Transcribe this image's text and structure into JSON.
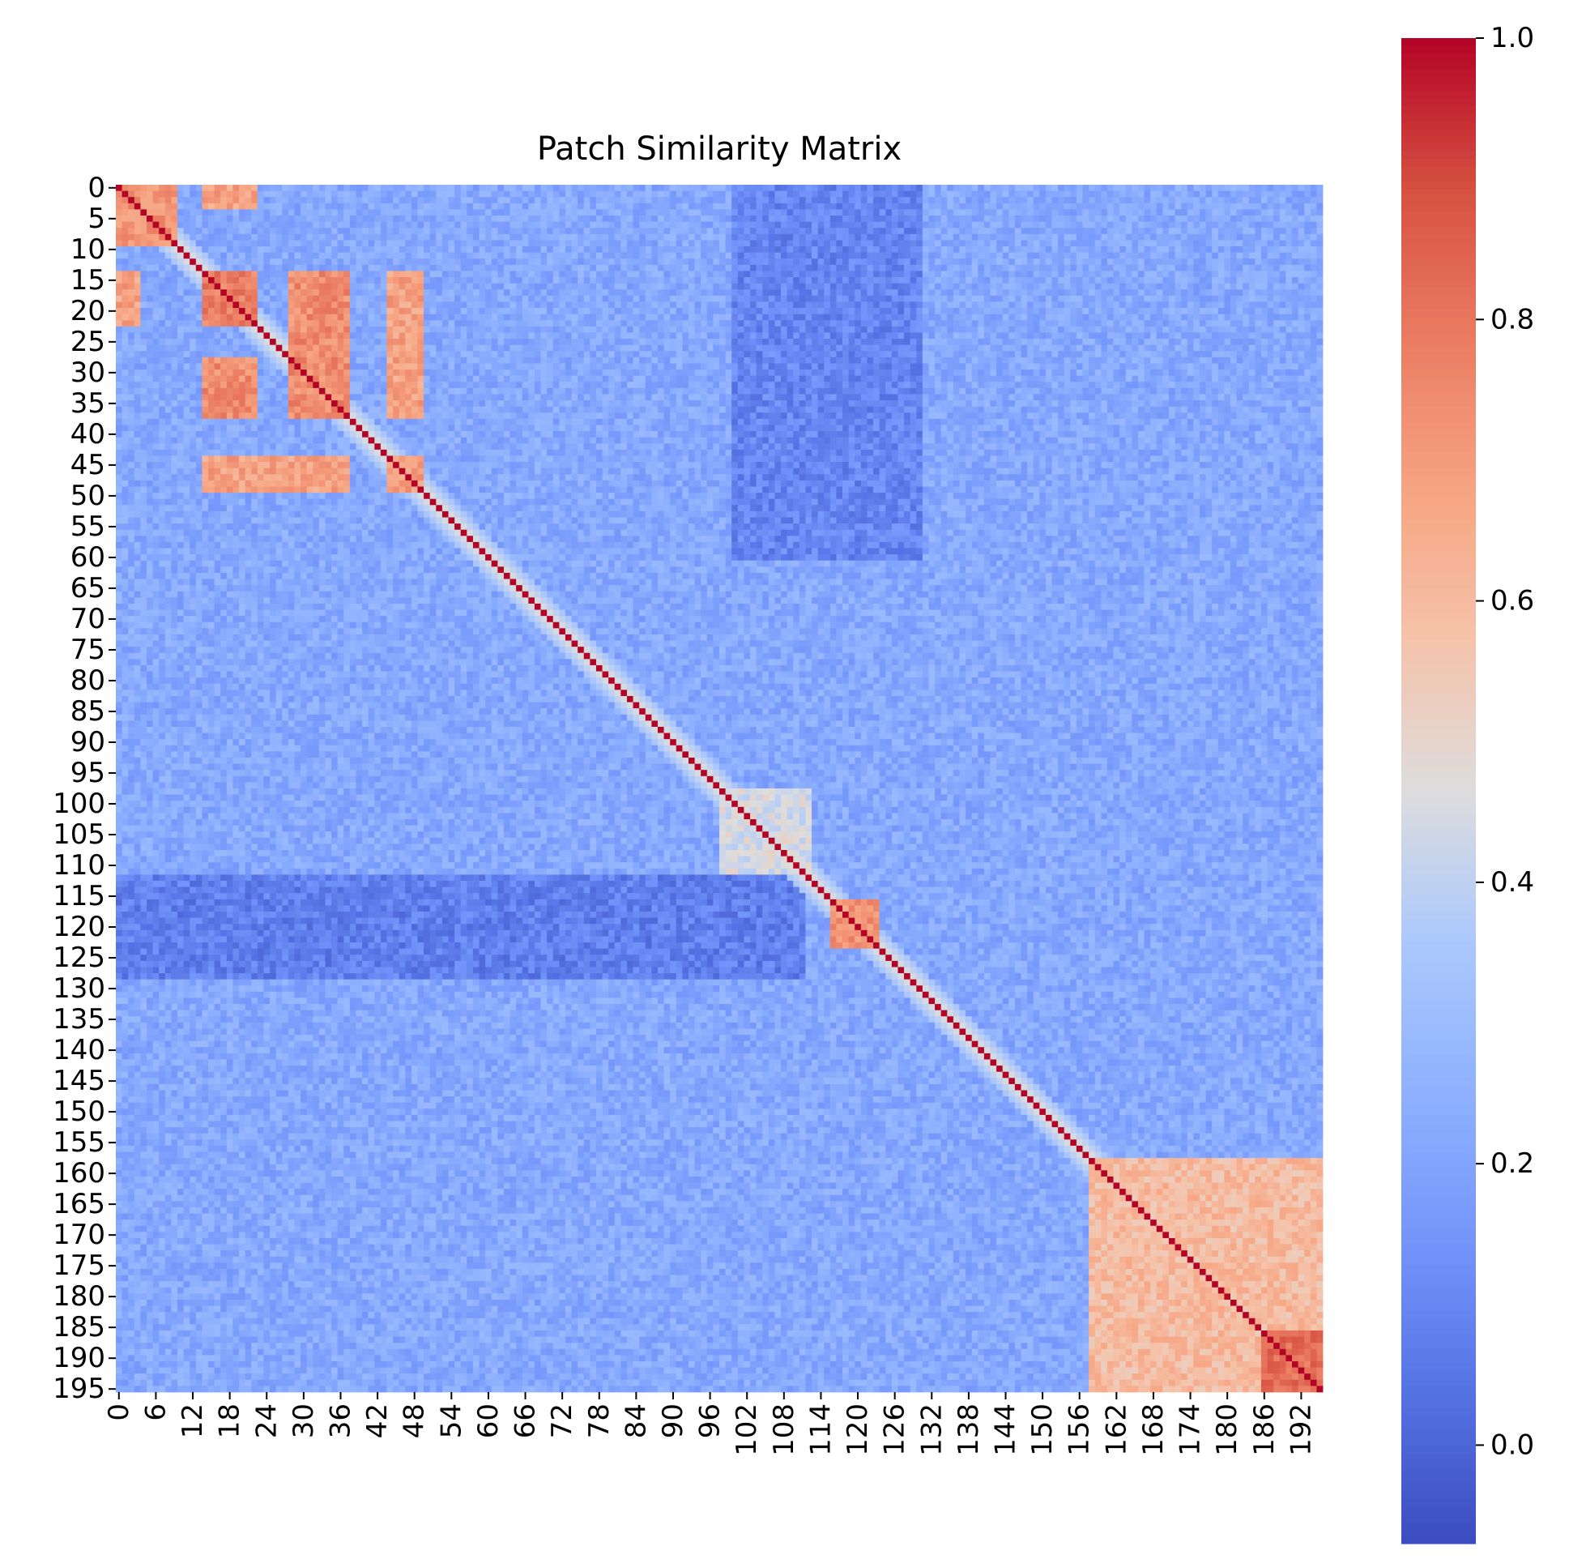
{
  "chart_data": {
    "type": "heatmap",
    "title": "Patch Similarity Matrix",
    "n": 196,
    "colormap": "coolwarm",
    "vmin": -0.07,
    "vmax": 1.0,
    "diagonal_value": 1.0,
    "background_value": 0.22,
    "y_tick_labels": [
      "0",
      "5",
      "10",
      "15",
      "20",
      "25",
      "30",
      "35",
      "40",
      "45",
      "50",
      "55",
      "60",
      "65",
      "70",
      "75",
      "80",
      "85",
      "90",
      "95",
      "100",
      "105",
      "110",
      "115",
      "120",
      "125",
      "130",
      "135",
      "140",
      "145",
      "150",
      "155",
      "160",
      "165",
      "170",
      "175",
      "180",
      "185",
      "190",
      "195"
    ],
    "x_tick_labels": [
      "0",
      "6",
      "12",
      "18",
      "24",
      "30",
      "36",
      "42",
      "48",
      "54",
      "60",
      "66",
      "72",
      "78",
      "84",
      "90",
      "96",
      "102",
      "108",
      "114",
      "120",
      "126",
      "132",
      "138",
      "144",
      "150",
      "156",
      "162",
      "168",
      "174",
      "180",
      "186",
      "192"
    ],
    "colorbar": {
      "ticks": [
        0.0,
        0.2,
        0.4,
        0.6,
        0.8,
        1.0
      ],
      "tick_labels": [
        "0.0",
        "0.2",
        "0.4",
        "0.6",
        "0.8",
        "1.0"
      ]
    },
    "similarity_blocks": [
      {
        "rows": [
          0,
          9
        ],
        "cols": [
          0,
          9
        ],
        "value": 0.72
      },
      {
        "rows": [
          14,
          22
        ],
        "cols": [
          14,
          22
        ],
        "value": 0.78
      },
      {
        "rows": [
          28,
          37
        ],
        "cols": [
          28,
          37
        ],
        "value": 0.76
      },
      {
        "rows": [
          44,
          49
        ],
        "cols": [
          44,
          49
        ],
        "value": 0.7
      },
      {
        "rows": [
          14,
          37
        ],
        "cols": [
          28,
          37
        ],
        "value": 0.74
      },
      {
        "rows": [
          28,
          37
        ],
        "cols": [
          14,
          22
        ],
        "value": 0.74
      },
      {
        "rows": [
          14,
          22
        ],
        "cols": [
          0,
          3
        ],
        "value": 0.68
      },
      {
        "rows": [
          0,
          3
        ],
        "cols": [
          14,
          22
        ],
        "value": 0.68
      },
      {
        "rows": [
          44,
          49
        ],
        "cols": [
          14,
          37
        ],
        "value": 0.68
      },
      {
        "rows": [
          14,
          37
        ],
        "cols": [
          44,
          49
        ],
        "value": 0.68
      },
      {
        "rows": [
          116,
          123
        ],
        "cols": [
          116,
          123
        ],
        "value": 0.72
      },
      {
        "rows": [
          158,
          195
        ],
        "cols": [
          158,
          195
        ],
        "value": 0.6
      },
      {
        "rows": [
          186,
          195
        ],
        "cols": [
          186,
          195
        ],
        "value": 0.82
      },
      {
        "rows": [
          98,
          112
        ],
        "cols": [
          98,
          112
        ],
        "value": 0.45
      },
      {
        "rows": [
          112,
          128
        ],
        "cols": [
          0,
          111
        ],
        "value": 0.08
      },
      {
        "rows": [
          0,
          60
        ],
        "cols": [
          100,
          130
        ],
        "value": 0.1
      }
    ]
  }
}
